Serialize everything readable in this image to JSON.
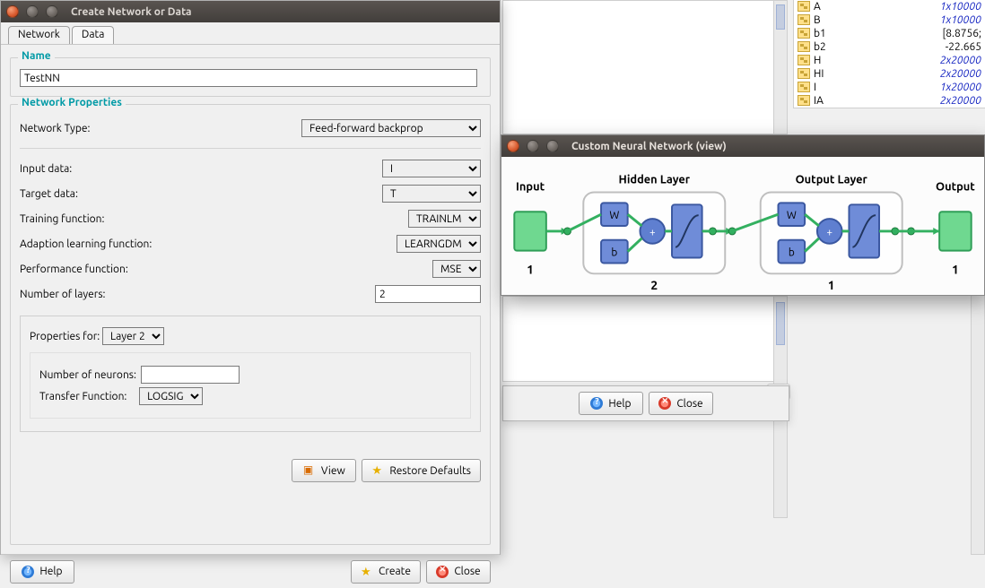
{
  "create_dialog": {
    "title": "Create Network or Data",
    "tabs": {
      "network": "Network",
      "data": "Data",
      "active": "network"
    },
    "name_group": {
      "legend": "Name",
      "value": "TestNN"
    },
    "props_group": {
      "legend": "Network Properties",
      "network_type_label": "Network Type:",
      "network_type_value": "Feed-forward backprop",
      "input_data_label": "Input data:",
      "input_data_value": "I",
      "target_data_label": "Target data:",
      "target_data_value": "T",
      "training_fn_label": "Training function:",
      "training_fn_value": "TRAINLM",
      "adaption_fn_label": "Adaption learning function:",
      "adaption_fn_value": "LEARNGDM",
      "perf_fn_label": "Performance function:",
      "perf_fn_value": "MSE",
      "num_layers_label": "Number of layers:",
      "num_layers_value": "2",
      "layer_props_label": "Properties for:",
      "layer_props_value": "Layer 2",
      "neurons_label": "Number of neurons:",
      "neurons_value": "",
      "transfer_label": "Transfer Function:",
      "transfer_value": "LOGSIG",
      "view_btn": "View",
      "restore_btn": "Restore Defaults"
    },
    "bottom": {
      "help": "Help",
      "create": "Create",
      "close": "Close"
    }
  },
  "strip": {
    "help": "Help",
    "close": "Close",
    "x": "✕",
    "caret": "⌄"
  },
  "viewer": {
    "title": "Custom Neural Network (view)",
    "input_label": "Input",
    "output_label": "Output",
    "hidden_label": "Hidden Layer",
    "output_layer_label": "Output Layer",
    "input_count": "1",
    "hidden_count": "2",
    "output_layer_count": "1",
    "output_count": "1",
    "W": "W",
    "b": "b",
    "colors": {
      "io_fill": "#6fd890",
      "io_stroke": "#2f9e57",
      "box_fill": "#6f8cd8",
      "box_stroke": "#3a57a0",
      "sum_fill": "#5f7fd0",
      "panel_stroke": "#bfbfbf",
      "arrow": "#33b060"
    }
  },
  "workspace": {
    "vars": [
      {
        "name": "A",
        "val": "1x10000",
        "blue": true
      },
      {
        "name": "B",
        "val": "1x10000",
        "blue": true
      },
      {
        "name": "b1",
        "val": "[8.8756;",
        "blue": false
      },
      {
        "name": "b2",
        "val": "-22.665",
        "blue": false
      },
      {
        "name": "H",
        "val": "2x20000",
        "blue": true
      },
      {
        "name": "HI",
        "val": "2x20000",
        "blue": true
      },
      {
        "name": "I",
        "val": "1x20000",
        "blue": true
      },
      {
        "name": "IA",
        "val": "2x20000",
        "blue": true
      }
    ]
  }
}
